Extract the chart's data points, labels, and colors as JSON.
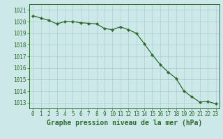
{
  "x": [
    0,
    1,
    2,
    3,
    4,
    5,
    6,
    7,
    8,
    9,
    10,
    11,
    12,
    13,
    14,
    15,
    16,
    17,
    18,
    19,
    20,
    21,
    22,
    23
  ],
  "y": [
    1020.5,
    1020.3,
    1020.1,
    1019.8,
    1020.0,
    1020.0,
    1019.9,
    1019.85,
    1019.8,
    1019.4,
    1019.3,
    1019.55,
    1019.3,
    1019.0,
    1018.1,
    1017.15,
    1016.3,
    1015.65,
    1015.1,
    1014.0,
    1013.5,
    1013.05,
    1013.1,
    1012.9
  ],
  "line_color": "#2d6a2d",
  "marker": "D",
  "marker_size": 2.2,
  "bg_color": "#cce8e8",
  "grid_color": "#aacfcf",
  "title": "Graphe pression niveau de la mer (hPa)",
  "ylim_min": 1012.5,
  "ylim_max": 1021.5,
  "xlim_min": -0.5,
  "xlim_max": 23.5,
  "yticks": [
    1013,
    1014,
    1015,
    1016,
    1017,
    1018,
    1019,
    1020,
    1021
  ],
  "xticks": [
    0,
    1,
    2,
    3,
    4,
    5,
    6,
    7,
    8,
    9,
    10,
    11,
    12,
    13,
    14,
    15,
    16,
    17,
    18,
    19,
    20,
    21,
    22,
    23
  ],
  "tick_fontsize": 5.5,
  "title_fontsize": 7,
  "title_fontweight": "bold",
  "linewidth": 0.9
}
